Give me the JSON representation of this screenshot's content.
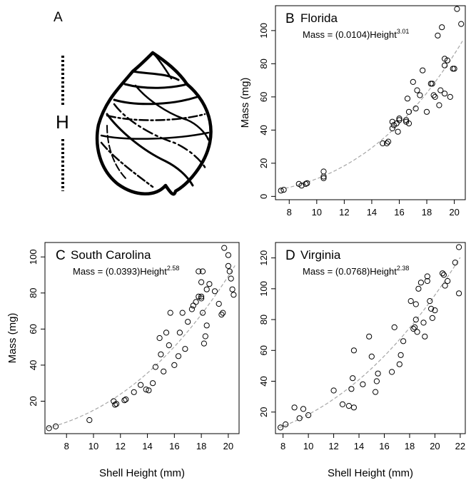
{
  "figure": {
    "panel_a": {
      "letter": "A",
      "h_label": "H"
    },
    "panels": [
      {
        "letter": "B",
        "title": "Florida",
        "eq_pre": "Mass = (0.0104)Height",
        "eq_exp": "3.01",
        "xlabel": "",
        "ylabel": "Mass (mg)",
        "xticks": [
          "8",
          "10",
          "12",
          "14",
          "16",
          "18",
          "20"
        ],
        "yticks": [
          "0",
          "20",
          "40",
          "60",
          "80",
          "100"
        ]
      },
      {
        "letter": "C",
        "title": "South Carolina",
        "eq_pre": "Mass = (0.0393)Height",
        "eq_exp": "2.58",
        "xlabel": "Shell Height (mm)",
        "ylabel": "Mass (mg)",
        "xticks": [
          "8",
          "10",
          "12",
          "14",
          "16",
          "18",
          "20"
        ],
        "yticks": [
          "20",
          "40",
          "60",
          "80",
          "100"
        ]
      },
      {
        "letter": "D",
        "title": "Virginia",
        "eq_pre": "Mass = (0.0768)Height",
        "eq_exp": "2.38",
        "xlabel": "Shell Height (mm)",
        "ylabel": "",
        "xticks": [
          "8",
          "10",
          "12",
          "14",
          "16",
          "18",
          "20",
          "22"
        ],
        "yticks": [
          "20",
          "40",
          "60",
          "80",
          "100",
          "120"
        ]
      }
    ]
  },
  "chart_data": [
    {
      "type": "scatter",
      "title": "Florida",
      "xlabel": "",
      "ylabel": "Mass (mg)",
      "xlim": [
        7,
        20.8
      ],
      "ylim": [
        -2,
        115
      ],
      "grid": false,
      "fit": {
        "a": 0.0104,
        "b": 3.01,
        "style": "dashed",
        "color": "#a6a6a6"
      },
      "series": [
        {
          "points": [
            [
              7.4,
              3.5
            ],
            [
              7.6,
              4
            ],
            [
              8.7,
              7.5
            ],
            [
              8.9,
              6.5
            ],
            [
              9.2,
              7.5
            ],
            [
              9.3,
              8
            ],
            [
              10.5,
              11
            ],
            [
              10.5,
              12
            ],
            [
              10.5,
              15
            ],
            [
              14.8,
              32
            ],
            [
              15.1,
              32
            ],
            [
              15.2,
              33
            ],
            [
              15.5,
              45
            ],
            [
              15.5,
              41
            ],
            [
              15.6,
              43
            ],
            [
              15.8,
              44
            ],
            [
              15.9,
              39
            ],
            [
              16,
              46
            ],
            [
              16,
              47
            ],
            [
              16.5,
              46
            ],
            [
              16.5,
              45
            ],
            [
              16.6,
              59
            ],
            [
              16.7,
              44
            ],
            [
              16.7,
              51
            ],
            [
              17,
              69
            ],
            [
              17.2,
              53
            ],
            [
              17.3,
              64
            ],
            [
              17.5,
              61
            ],
            [
              17.7,
              76
            ],
            [
              18,
              51
            ],
            [
              18.3,
              68
            ],
            [
              18.4,
              68
            ],
            [
              18.5,
              61
            ],
            [
              18.6,
              60
            ],
            [
              18.8,
              97
            ],
            [
              18.9,
              55
            ],
            [
              19,
              64
            ],
            [
              19.1,
              102
            ],
            [
              19.3,
              83
            ],
            [
              19.3,
              79
            ],
            [
              19.3,
              62
            ],
            [
              19.5,
              82
            ],
            [
              19.7,
              60
            ],
            [
              19.9,
              77
            ],
            [
              20,
              77
            ],
            [
              20.2,
              113
            ],
            [
              20.5,
              104
            ]
          ]
        }
      ]
    },
    {
      "type": "scatter",
      "title": "South Carolina",
      "xlabel": "Shell Height (mm)",
      "ylabel": "Mass (mg)",
      "xlim": [
        6.4,
        20.8
      ],
      "ylim": [
        2,
        108
      ],
      "grid": false,
      "fit": {
        "a": 0.0393,
        "b": 2.58,
        "style": "dashed",
        "color": "#a6a6a6"
      },
      "series": [
        {
          "points": [
            [
              6.7,
              5
            ],
            [
              7.2,
              6
            ],
            [
              9.7,
              9.5
            ],
            [
              11.5,
              20
            ],
            [
              11.6,
              18
            ],
            [
              11.7,
              18.5
            ],
            [
              12.3,
              20.5
            ],
            [
              12.4,
              21
            ],
            [
              13,
              25
            ],
            [
              13.5,
              29
            ],
            [
              13.9,
              26.5
            ],
            [
              14.1,
              26
            ],
            [
              14.4,
              30
            ],
            [
              14.6,
              39
            ],
            [
              14.9,
              55
            ],
            [
              15,
              46
            ],
            [
              15.2,
              36.5
            ],
            [
              15.4,
              58
            ],
            [
              15.6,
              51
            ],
            [
              15.7,
              69
            ],
            [
              16,
              40
            ],
            [
              16.3,
              45
            ],
            [
              16.4,
              58
            ],
            [
              16.6,
              69
            ],
            [
              16.8,
              49
            ],
            [
              17,
              64
            ],
            [
              17.3,
              71
            ],
            [
              17.4,
              73
            ],
            [
              17.6,
              75
            ],
            [
              17.8,
              78
            ],
            [
              17.8,
              92
            ],
            [
              18,
              77
            ],
            [
              18,
              78
            ],
            [
              18,
              86
            ],
            [
              18.1,
              92
            ],
            [
              18.1,
              69
            ],
            [
              18.2,
              52
            ],
            [
              18.3,
              56
            ],
            [
              18.4,
              62
            ],
            [
              18.4,
              82
            ],
            [
              18.6,
              85
            ],
            [
              19,
              81
            ],
            [
              19.3,
              74
            ],
            [
              19.5,
              68
            ],
            [
              19.6,
              69
            ],
            [
              19.7,
              105
            ],
            [
              20,
              101
            ],
            [
              20,
              95
            ],
            [
              20.1,
              92
            ],
            [
              20.2,
              88
            ],
            [
              20.3,
              82
            ],
            [
              20.4,
              79
            ]
          ]
        }
      ]
    },
    {
      "type": "scatter",
      "title": "Virginia",
      "xlabel": "Shell Height (mm)",
      "ylabel": "",
      "xlim": [
        7.4,
        22.4
      ],
      "ylim": [
        6,
        130
      ],
      "grid": false,
      "fit": {
        "a": 0.0768,
        "b": 2.38,
        "style": "dashed",
        "color": "#a6a6a6"
      },
      "series": [
        {
          "points": [
            [
              7.8,
              10
            ],
            [
              8.2,
              12
            ],
            [
              8.9,
              23
            ],
            [
              9.3,
              16
            ],
            [
              9.6,
              22
            ],
            [
              10,
              18
            ],
            [
              12,
              34
            ],
            [
              12.7,
              25
            ],
            [
              13.2,
              24
            ],
            [
              13.4,
              35
            ],
            [
              13.5,
              42
            ],
            [
              13.6,
              60
            ],
            [
              13.6,
              23
            ],
            [
              14.3,
              38
            ],
            [
              14.8,
              69
            ],
            [
              15,
              56
            ],
            [
              15.3,
              33
            ],
            [
              15.4,
              40
            ],
            [
              15.5,
              45
            ],
            [
              16.6,
              46
            ],
            [
              16.8,
              75
            ],
            [
              17.2,
              51
            ],
            [
              17.3,
              57
            ],
            [
              17.5,
              66
            ],
            [
              18.1,
              92
            ],
            [
              18.3,
              74
            ],
            [
              18.4,
              75
            ],
            [
              18.5,
              80
            ],
            [
              18.5,
              90
            ],
            [
              18.6,
              72
            ],
            [
              18.7,
              100
            ],
            [
              18.9,
              104
            ],
            [
              19.1,
              78
            ],
            [
              19.2,
              69
            ],
            [
              19.4,
              108
            ],
            [
              19.4,
              105
            ],
            [
              19.6,
              92
            ],
            [
              19.7,
              87
            ],
            [
              19.8,
              81
            ],
            [
              20,
              86
            ],
            [
              20.6,
              110
            ],
            [
              20.7,
              109
            ],
            [
              20.8,
              102
            ],
            [
              21,
              105
            ],
            [
              21.6,
              117
            ],
            [
              21.9,
              127
            ],
            [
              21.9,
              97
            ]
          ]
        }
      ]
    }
  ]
}
